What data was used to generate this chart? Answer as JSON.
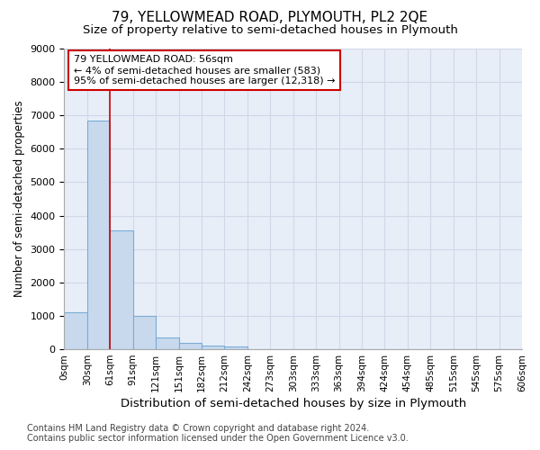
{
  "title": "79, YELLOWMEAD ROAD, PLYMOUTH, PL2 2QE",
  "subtitle": "Size of property relative to semi-detached houses in Plymouth",
  "xlabel": "Distribution of semi-detached houses by size in Plymouth",
  "ylabel": "Number of semi-detached properties",
  "bar_values": [
    1100,
    6850,
    3550,
    1000,
    350,
    200,
    100,
    70,
    0,
    0,
    0,
    0,
    0,
    0,
    0,
    0,
    0,
    0,
    0,
    0
  ],
  "bar_color": "#c8d9ee",
  "bar_edge_color": "#7aacd6",
  "x_labels": [
    "0sqm",
    "30sqm",
    "61sqm",
    "91sqm",
    "121sqm",
    "151sqm",
    "182sqm",
    "212sqm",
    "242sqm",
    "273sqm",
    "303sqm",
    "333sqm",
    "363sqm",
    "394sqm",
    "424sqm",
    "454sqm",
    "485sqm",
    "515sqm",
    "545sqm",
    "575sqm",
    "606sqm"
  ],
  "ylim": [
    0,
    9000
  ],
  "yticks": [
    0,
    1000,
    2000,
    3000,
    4000,
    5000,
    6000,
    7000,
    8000,
    9000
  ],
  "property_line_x": 2.0,
  "annotation_text": "79 YELLOWMEAD ROAD: 56sqm\n← 4% of semi-detached houses are smaller (583)\n95% of semi-detached houses are larger (12,318) →",
  "annotation_box_color": "#ffffff",
  "annotation_box_edge": "#cc0000",
  "property_line_color": "#cc0000",
  "grid_color": "#d0d8e8",
  "background_color": "#e8eef8",
  "footer_text": "Contains HM Land Registry data © Crown copyright and database right 2024.\nContains public sector information licensed under the Open Government Licence v3.0.",
  "title_fontsize": 11,
  "subtitle_fontsize": 9.5,
  "xlabel_fontsize": 9.5,
  "ylabel_fontsize": 8.5,
  "tick_fontsize": 8,
  "xtick_fontsize": 7.5,
  "footer_fontsize": 7,
  "annot_fontsize": 8
}
